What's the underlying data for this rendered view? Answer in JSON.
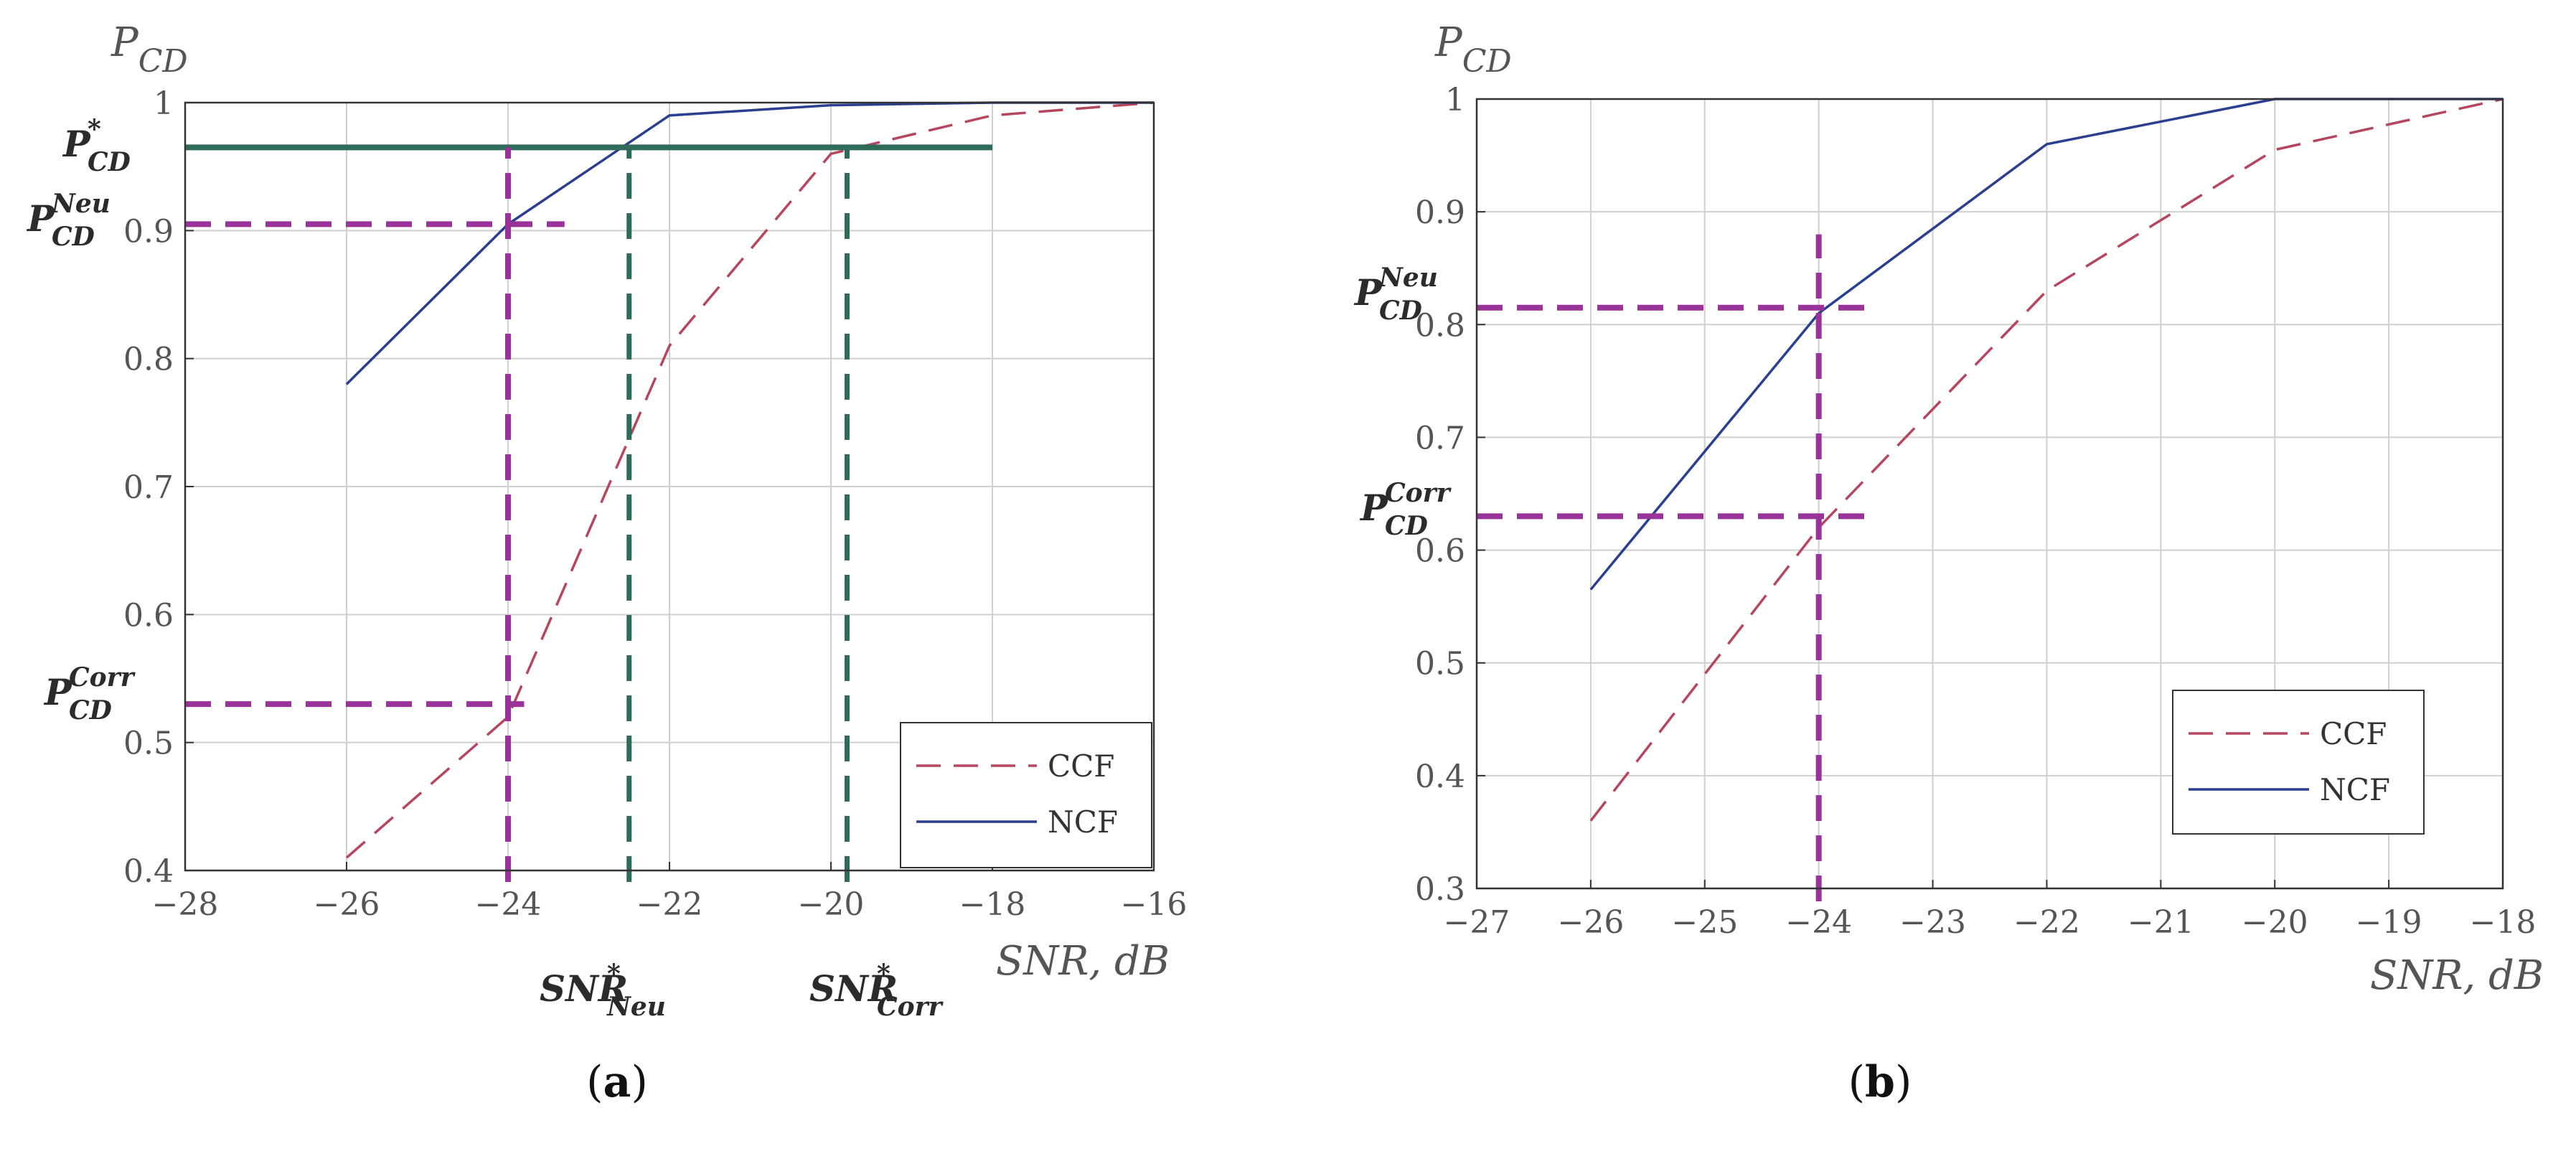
{
  "chart_data": [
    {
      "panel": "a",
      "type": "line",
      "caption": {
        "open": "(",
        "letter": "a",
        "close": ")"
      },
      "ylabel": {
        "main": "P",
        "sub": "CD"
      },
      "xlabel": "SNR, dB",
      "xlim": [
        -28,
        -16
      ],
      "ylim": [
        0.4,
        1.0
      ],
      "xticks": [
        -28,
        -26,
        -24,
        -22,
        -20,
        -18,
        -16
      ],
      "yticks": [
        0.4,
        0.5,
        0.6,
        0.7,
        0.8,
        0.9,
        1.0
      ],
      "xtick_labels": [
        "−28",
        "−26",
        "−24",
        "−22",
        "−20",
        "−18",
        "−16"
      ],
      "ytick_labels": [
        "0.4",
        "0.5",
        "0.6",
        "0.7",
        "0.8",
        "0.9",
        "1"
      ],
      "grid": true,
      "legend_position": "lower-right",
      "series": [
        {
          "name": "CCF",
          "color": "#b5465e",
          "style": "dashed",
          "x": [
            -26,
            -24,
            -22,
            -20,
            -18,
            -16
          ],
          "y": [
            0.41,
            0.52,
            0.81,
            0.96,
            0.99,
            1.0
          ]
        },
        {
          "name": "NCF",
          "color": "#2a3f8f",
          "style": "solid",
          "x": [
            -26,
            -24,
            -22,
            -20,
            -18,
            -16
          ],
          "y": [
            0.78,
            0.905,
            0.99,
            0.998,
            1.0,
            1.0
          ]
        }
      ],
      "annotations": [
        {
          "id": "p-star-line",
          "kind": "hline",
          "y": 0.965,
          "x0": -28,
          "x1": -18,
          "color": "#2e6b5a",
          "style": "solid"
        },
        {
          "id": "p-neu-line",
          "kind": "hline",
          "y": 0.905,
          "x0": -28,
          "x1": -23.3,
          "color": "#993399",
          "style": "dashed"
        },
        {
          "id": "p-corr-line",
          "kind": "hline",
          "y": 0.53,
          "x0": -28,
          "x1": -23.8,
          "color": "#993399",
          "style": "dashed"
        },
        {
          "id": "snr-24-line",
          "kind": "vline",
          "x": -24,
          "y0": 0.4,
          "y1": 0.965,
          "color": "#993399",
          "style": "dashed"
        },
        {
          "id": "snr-neu-line",
          "kind": "vline",
          "x": -22.5,
          "y0": 0.4,
          "y1": 0.965,
          "color": "#2e6b5a",
          "style": "dashed"
        },
        {
          "id": "snr-corr-line",
          "kind": "vline",
          "x": -19.8,
          "y0": 0.4,
          "y1": 0.965,
          "color": "#2e6b5a",
          "style": "dashed"
        }
      ],
      "labels": [
        {
          "id": "label-p-star",
          "main": "P",
          "sup": "*",
          "sub": "CD"
        },
        {
          "id": "label-p-neu",
          "main": "P",
          "sup": "Neu",
          "sub": "CD"
        },
        {
          "id": "label-p-corr",
          "main": "P",
          "sup": "Corr",
          "sub": "CD"
        },
        {
          "id": "label-snr-neu",
          "main": "SNR",
          "sup": "*",
          "sub": "Neu"
        },
        {
          "id": "label-snr-corr",
          "main": "SNR",
          "sup": "*",
          "sub": "Corr"
        }
      ]
    },
    {
      "panel": "b",
      "type": "line",
      "caption": {
        "open": "(",
        "letter": "b",
        "close": ")"
      },
      "ylabel": {
        "main": "P",
        "sub": "CD"
      },
      "xlabel": "SNR, dB",
      "xlim": [
        -27,
        -18
      ],
      "ylim": [
        0.3,
        1.0
      ],
      "xticks": [
        -27,
        -26,
        -25,
        -24,
        -23,
        -22,
        -21,
        -20,
        -19,
        -18
      ],
      "yticks": [
        0.3,
        0.4,
        0.5,
        0.6,
        0.7,
        0.8,
        0.9,
        1.0
      ],
      "xtick_labels": [
        "−27",
        "−26",
        "−25",
        "−24",
        "−23",
        "−22",
        "−21",
        "−20",
        "−19",
        "−18"
      ],
      "ytick_labels": [
        "0.3",
        "0.4",
        "0.5",
        "0.6",
        "0.7",
        "0.8",
        "0.9",
        "1"
      ],
      "grid": true,
      "legend_position": "lower-right",
      "series": [
        {
          "name": "CCF",
          "color": "#b5465e",
          "style": "dashed",
          "x": [
            -26,
            -24,
            -22,
            -20,
            -18
          ],
          "y": [
            0.36,
            0.62,
            0.83,
            0.955,
            1.0
          ]
        },
        {
          "name": "NCF",
          "color": "#2a3f8f",
          "style": "solid",
          "x": [
            -26,
            -24,
            -22,
            -20,
            -18
          ],
          "y": [
            0.565,
            0.81,
            0.96,
            1.0,
            1.0
          ]
        }
      ],
      "annotations": [
        {
          "id": "p-neu-line",
          "kind": "hline",
          "y": 0.815,
          "x0": -27,
          "x1": -23.5,
          "color": "#993399",
          "style": "dashed"
        },
        {
          "id": "p-corr-line",
          "kind": "hline",
          "y": 0.63,
          "x0": -27,
          "x1": -23.5,
          "color": "#993399",
          "style": "dashed"
        },
        {
          "id": "snr-24-line",
          "kind": "vline",
          "x": -24,
          "y0": 0.3,
          "y1": 0.88,
          "color": "#993399",
          "style": "dashed"
        }
      ],
      "labels": [
        {
          "id": "label-p-neu",
          "main": "P",
          "sup": "Neu",
          "sub": "CD"
        },
        {
          "id": "label-p-corr",
          "main": "P",
          "sup": "Corr",
          "sub": "CD"
        }
      ]
    }
  ]
}
